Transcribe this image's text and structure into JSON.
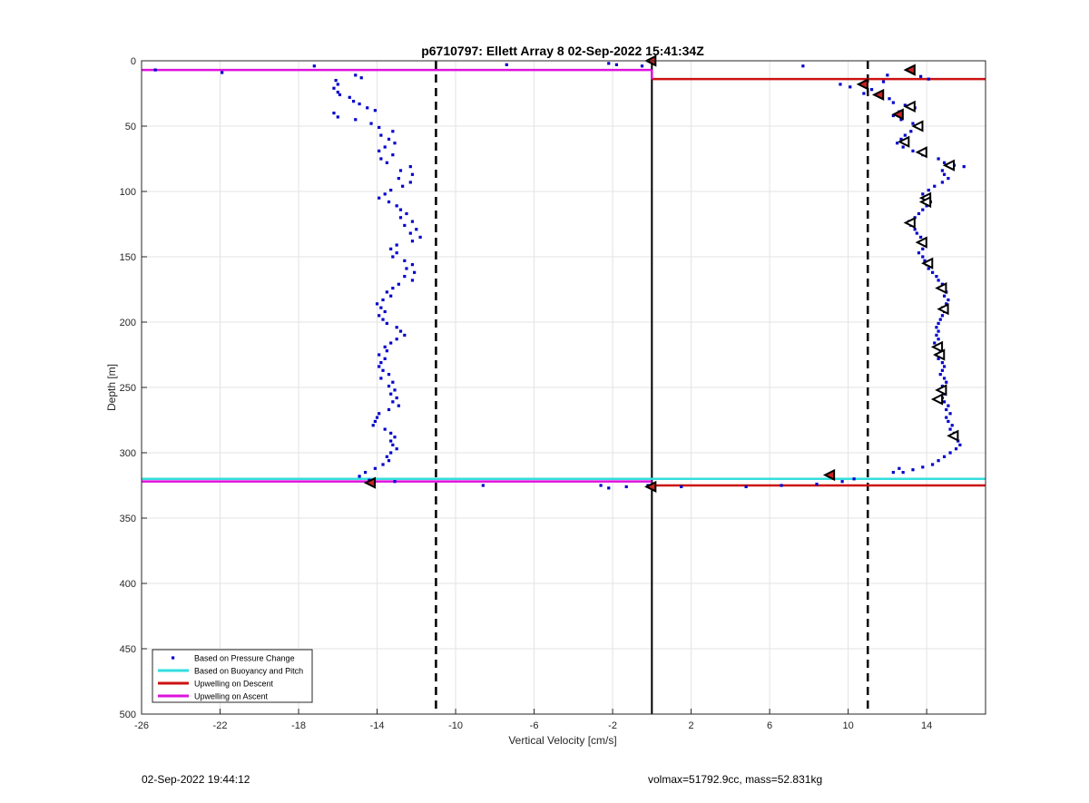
{
  "chart_data": {
    "type": "scatter",
    "title": "p6710797: Ellett Array 8 02-Sep-2022 15:41:34Z",
    "xlabel": "Vertical Velocity [cm/s]",
    "ylabel": "Depth [m]",
    "xlim": [
      -26,
      17
    ],
    "ylim": [
      0,
      500
    ],
    "y_reversed": true,
    "grid": true,
    "x_ticks": [
      -26,
      -22,
      -18,
      -14,
      -10,
      -6,
      -2,
      2,
      6,
      10,
      14
    ],
    "y_ticks": [
      0,
      50,
      100,
      150,
      200,
      250,
      300,
      350,
      400,
      450,
      500
    ],
    "legend_position": "bottom-left",
    "series": [
      {
        "name": "Based on Pressure Change",
        "kind": "points",
        "color": "#0000cc",
        "descent_points": [
          [
            -17.2,
            4
          ],
          [
            -21.9,
            9
          ],
          [
            -25.3,
            7
          ],
          [
            -15.1,
            11
          ],
          [
            -14.8,
            13
          ],
          [
            -16.1,
            15
          ],
          [
            -16.0,
            18
          ],
          [
            -16.2,
            21
          ],
          [
            -16.0,
            24
          ],
          [
            -15.9,
            26
          ],
          [
            -15.4,
            28
          ],
          [
            -15.2,
            31
          ],
          [
            -14.9,
            33
          ],
          [
            -14.5,
            36
          ],
          [
            -14.1,
            38
          ],
          [
            -16.2,
            40
          ],
          [
            -16.0,
            43
          ],
          [
            -15.1,
            45
          ],
          [
            -14.3,
            48
          ],
          [
            -13.9,
            51
          ],
          [
            -13.2,
            54
          ],
          [
            -13.8,
            57
          ],
          [
            -13.4,
            60
          ],
          [
            -13.1,
            63
          ],
          [
            -13.6,
            66
          ],
          [
            -13.9,
            69
          ],
          [
            -13.2,
            72
          ],
          [
            -13.8,
            75
          ],
          [
            -13.5,
            78
          ],
          [
            -12.3,
            81
          ],
          [
            -12.8,
            84
          ],
          [
            -12.2,
            87
          ],
          [
            -12.9,
            90
          ],
          [
            -12.3,
            93
          ],
          [
            -12.7,
            96
          ],
          [
            -13.3,
            99
          ],
          [
            -13.6,
            102
          ],
          [
            -13.9,
            105
          ],
          [
            -13.4,
            108
          ],
          [
            -13.0,
            111
          ],
          [
            -12.8,
            114
          ],
          [
            -12.5,
            117
          ],
          [
            -12.8,
            120
          ],
          [
            -12.2,
            123
          ],
          [
            -12.6,
            126
          ],
          [
            -12.0,
            129
          ],
          [
            -12.3,
            132
          ],
          [
            -11.8,
            135
          ],
          [
            -12.2,
            138
          ],
          [
            -13.0,
            141
          ],
          [
            -13.3,
            144
          ],
          [
            -13.0,
            147
          ],
          [
            -13.2,
            150
          ],
          [
            -12.6,
            153
          ],
          [
            -12.2,
            156
          ],
          [
            -12.5,
            159
          ],
          [
            -12.1,
            162
          ],
          [
            -12.6,
            165
          ],
          [
            -12.2,
            168
          ],
          [
            -12.9,
            171
          ],
          [
            -13.2,
            174
          ],
          [
            -13.5,
            177
          ],
          [
            -13.3,
            180
          ],
          [
            -13.7,
            183
          ],
          [
            -14.0,
            186
          ],
          [
            -13.8,
            189
          ],
          [
            -13.6,
            192
          ],
          [
            -13.9,
            195
          ],
          [
            -13.7,
            198
          ],
          [
            -13.5,
            201
          ],
          [
            -13.0,
            204
          ],
          [
            -12.8,
            207
          ],
          [
            -12.6,
            210
          ],
          [
            -13.0,
            213
          ],
          [
            -13.3,
            216
          ],
          [
            -13.6,
            219
          ],
          [
            -13.5,
            222
          ],
          [
            -13.9,
            225
          ],
          [
            -13.6,
            228
          ],
          [
            -13.8,
            231
          ],
          [
            -13.9,
            234
          ],
          [
            -13.7,
            237
          ],
          [
            -13.4,
            240
          ],
          [
            -13.8,
            243
          ],
          [
            -13.2,
            246
          ],
          [
            -13.4,
            249
          ],
          [
            -13.1,
            252
          ],
          [
            -13.3,
            255
          ],
          [
            -13.0,
            258
          ],
          [
            -13.2,
            261
          ],
          [
            -12.9,
            264
          ],
          [
            -13.4,
            267
          ],
          [
            -13.9,
            270
          ],
          [
            -14.0,
            273
          ],
          [
            -14.1,
            276
          ],
          [
            -14.2,
            279
          ],
          [
            -13.6,
            282
          ],
          [
            -13.3,
            285
          ],
          [
            -13.1,
            288
          ],
          [
            -13.3,
            291
          ],
          [
            -13.2,
            294
          ],
          [
            -13.0,
            297
          ],
          [
            -13.3,
            300
          ],
          [
            -13.5,
            303
          ],
          [
            -13.4,
            306
          ],
          [
            -13.7,
            309
          ],
          [
            -14.1,
            312
          ],
          [
            -14.6,
            315
          ],
          [
            -14.9,
            318
          ],
          [
            -14.4,
            321
          ],
          [
            -13.1,
            322
          ],
          [
            -8.6,
            325
          ],
          [
            -2.6,
            325
          ],
          [
            -2.2,
            327
          ],
          [
            -1.3,
            326
          ],
          [
            -0.2,
            325
          ],
          [
            -7.4,
            3
          ],
          [
            -2.2,
            2
          ],
          [
            -1.8,
            3
          ],
          [
            -0.5,
            4
          ]
        ],
        "ascent_points": [
          [
            7.7,
            4
          ],
          [
            12.0,
            11
          ],
          [
            13.7,
            12
          ],
          [
            14.1,
            14
          ],
          [
            11.8,
            16
          ],
          [
            9.6,
            18
          ],
          [
            10.1,
            20
          ],
          [
            11.2,
            22
          ],
          [
            10.8,
            25
          ],
          [
            11.6,
            27
          ],
          [
            12.1,
            29
          ],
          [
            12.3,
            32
          ],
          [
            12.9,
            34
          ],
          [
            13.4,
            36
          ],
          [
            12.6,
            39
          ],
          [
            12.3,
            42
          ],
          [
            12.7,
            45
          ],
          [
            13.3,
            48
          ],
          [
            13.7,
            51
          ],
          [
            13.2,
            54
          ],
          [
            12.9,
            57
          ],
          [
            12.7,
            60
          ],
          [
            12.5,
            63
          ],
          [
            12.8,
            66
          ],
          [
            13.3,
            69
          ],
          [
            13.8,
            72
          ],
          [
            14.6,
            75
          ],
          [
            14.9,
            78
          ],
          [
            15.4,
            80
          ],
          [
            15.9,
            81
          ],
          [
            14.8,
            84
          ],
          [
            14.9,
            87
          ],
          [
            15.1,
            90
          ],
          [
            14.8,
            93
          ],
          [
            14.4,
            96
          ],
          [
            14.1,
            99
          ],
          [
            13.8,
            102
          ],
          [
            14.0,
            105
          ],
          [
            14.2,
            108
          ],
          [
            14.0,
            111
          ],
          [
            13.8,
            114
          ],
          [
            13.6,
            117
          ],
          [
            13.4,
            120
          ],
          [
            13.1,
            123
          ],
          [
            13.2,
            126
          ],
          [
            13.4,
            129
          ],
          [
            13.5,
            132
          ],
          [
            13.7,
            135
          ],
          [
            13.8,
            138
          ],
          [
            13.9,
            141
          ],
          [
            13.8,
            144
          ],
          [
            13.6,
            147
          ],
          [
            13.8,
            150
          ],
          [
            13.9,
            153
          ],
          [
            14.0,
            156
          ],
          [
            14.1,
            159
          ],
          [
            14.3,
            162
          ],
          [
            14.5,
            165
          ],
          [
            14.6,
            168
          ],
          [
            14.8,
            171
          ],
          [
            14.9,
            174
          ],
          [
            15.0,
            177
          ],
          [
            14.9,
            180
          ],
          [
            15.1,
            183
          ],
          [
            15.0,
            186
          ],
          [
            14.8,
            189
          ],
          [
            14.9,
            192
          ],
          [
            14.8,
            195
          ],
          [
            14.7,
            198
          ],
          [
            14.6,
            201
          ],
          [
            14.5,
            204
          ],
          [
            14.6,
            207
          ],
          [
            14.5,
            210
          ],
          [
            14.6,
            213
          ],
          [
            14.4,
            216
          ],
          [
            14.6,
            219
          ],
          [
            14.7,
            222
          ],
          [
            14.5,
            225
          ],
          [
            14.6,
            228
          ],
          [
            14.8,
            231
          ],
          [
            14.9,
            234
          ],
          [
            14.8,
            237
          ],
          [
            14.7,
            240
          ],
          [
            14.9,
            243
          ],
          [
            15.0,
            246
          ],
          [
            14.8,
            249
          ],
          [
            14.7,
            252
          ],
          [
            14.9,
            255
          ],
          [
            14.8,
            258
          ],
          [
            14.9,
            261
          ],
          [
            15.1,
            264
          ],
          [
            15.0,
            267
          ],
          [
            15.2,
            270
          ],
          [
            15.0,
            273
          ],
          [
            15.1,
            276
          ],
          [
            15.3,
            279
          ],
          [
            15.2,
            282
          ],
          [
            15.4,
            285
          ],
          [
            15.5,
            288
          ],
          [
            15.6,
            291
          ],
          [
            15.7,
            294
          ],
          [
            15.5,
            297
          ],
          [
            15.2,
            300
          ],
          [
            14.9,
            303
          ],
          [
            14.6,
            306
          ],
          [
            14.3,
            309
          ],
          [
            13.8,
            311
          ],
          [
            13.3,
            313
          ],
          [
            12.8,
            315
          ],
          [
            12.3,
            315
          ],
          [
            12.6,
            312
          ],
          [
            10.3,
            320
          ],
          [
            9.7,
            322
          ],
          [
            8.4,
            324
          ],
          [
            6.6,
            325
          ],
          [
            4.8,
            326
          ],
          [
            1.5,
            326
          ]
        ]
      },
      {
        "name": "Based on Buoyancy and Pitch",
        "kind": "line",
        "color": "#33dddd",
        "segments": [
          {
            "x": [
              -26,
              17
            ],
            "y": [
              320,
              320
            ]
          }
        ]
      },
      {
        "name": "Upwelling on Descent",
        "kind": "line",
        "color": "#cc1111",
        "segments": [
          {
            "x": [
              0,
              17
            ],
            "y": [
              14,
              14
            ]
          },
          {
            "x": [
              0,
              17
            ],
            "y": [
              325,
              325
            ]
          }
        ]
      },
      {
        "name": "Upwelling on Ascent",
        "kind": "line",
        "color": "#dd11dd",
        "segments": [
          {
            "x": [
              -26,
              0
            ],
            "y": [
              7,
              7
            ]
          },
          {
            "x": [
              -26,
              0
            ],
            "y": [
              322,
              322
            ]
          }
        ]
      }
    ],
    "reference_lines": {
      "dashed_x": [
        -11,
        11
      ],
      "solid_x": [
        0
      ],
      "color": "#000000"
    },
    "markers": {
      "kind": "triangle-left",
      "color": "#000000",
      "filled_color": "#cc2222",
      "open": [
        [
          13.2,
          35
        ],
        [
          13.6,
          50
        ],
        [
          12.9,
          62
        ],
        [
          13.8,
          70
        ],
        [
          15.2,
          80
        ],
        [
          14.0,
          105
        ],
        [
          14.0,
          108
        ],
        [
          13.2,
          124
        ],
        [
          13.8,
          139
        ],
        [
          14.1,
          155
        ],
        [
          14.8,
          174
        ],
        [
          14.9,
          190
        ],
        [
          14.6,
          219
        ],
        [
          14.7,
          225
        ],
        [
          14.8,
          252
        ],
        [
          14.6,
          259
        ],
        [
          15.4,
          287
        ]
      ],
      "filled": [
        [
          13.2,
          7
        ],
        [
          10.8,
          18
        ],
        [
          11.6,
          26
        ],
        [
          12.6,
          41
        ],
        [
          0.0,
          0
        ],
        [
          -14.3,
          323
        ],
        [
          0.0,
          326
        ],
        [
          9.1,
          317
        ]
      ]
    }
  },
  "footer": {
    "left": "02-Sep-2022 19:44:12",
    "right": "volmax=51792.9cc, mass=52.831kg"
  }
}
